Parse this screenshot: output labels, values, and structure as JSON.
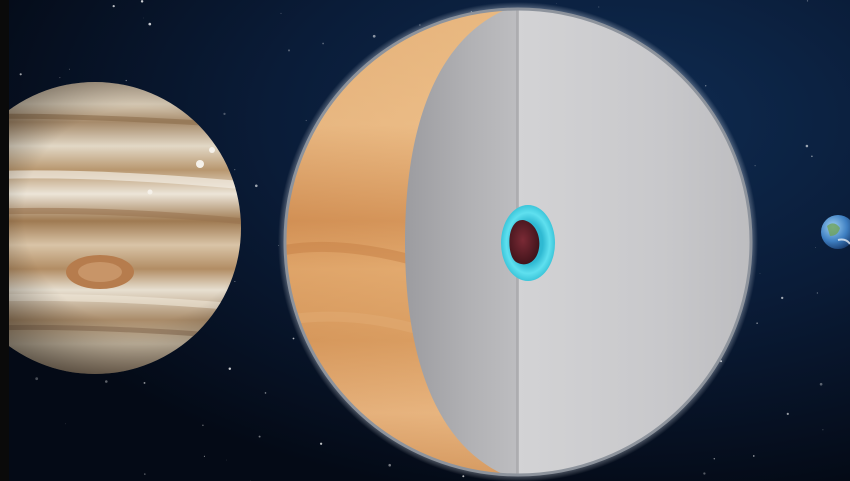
{
  "scene": {
    "description_free": true,
    "objects": [
      {
        "name": "jupiter",
        "icon": "jupiter-planet-icon"
      },
      {
        "name": "jupiter-interior-cutaway",
        "icon": "cutaway-sphere-icon"
      },
      {
        "name": "earth",
        "icon": "earth-planet-icon"
      }
    ]
  },
  "colors": {
    "space_background": "#07162c",
    "cutaway_outer_layer": "#c9c9cb",
    "cutaway_inner_layer": "#a9a9ac",
    "core_ring": "#3fd2e6",
    "core_center": "#5a1b24",
    "jupiter_band_light": "#e6dfd2",
    "jupiter_band_dark": "#9c7a55",
    "great_red_spot": "#b47a4c"
  }
}
